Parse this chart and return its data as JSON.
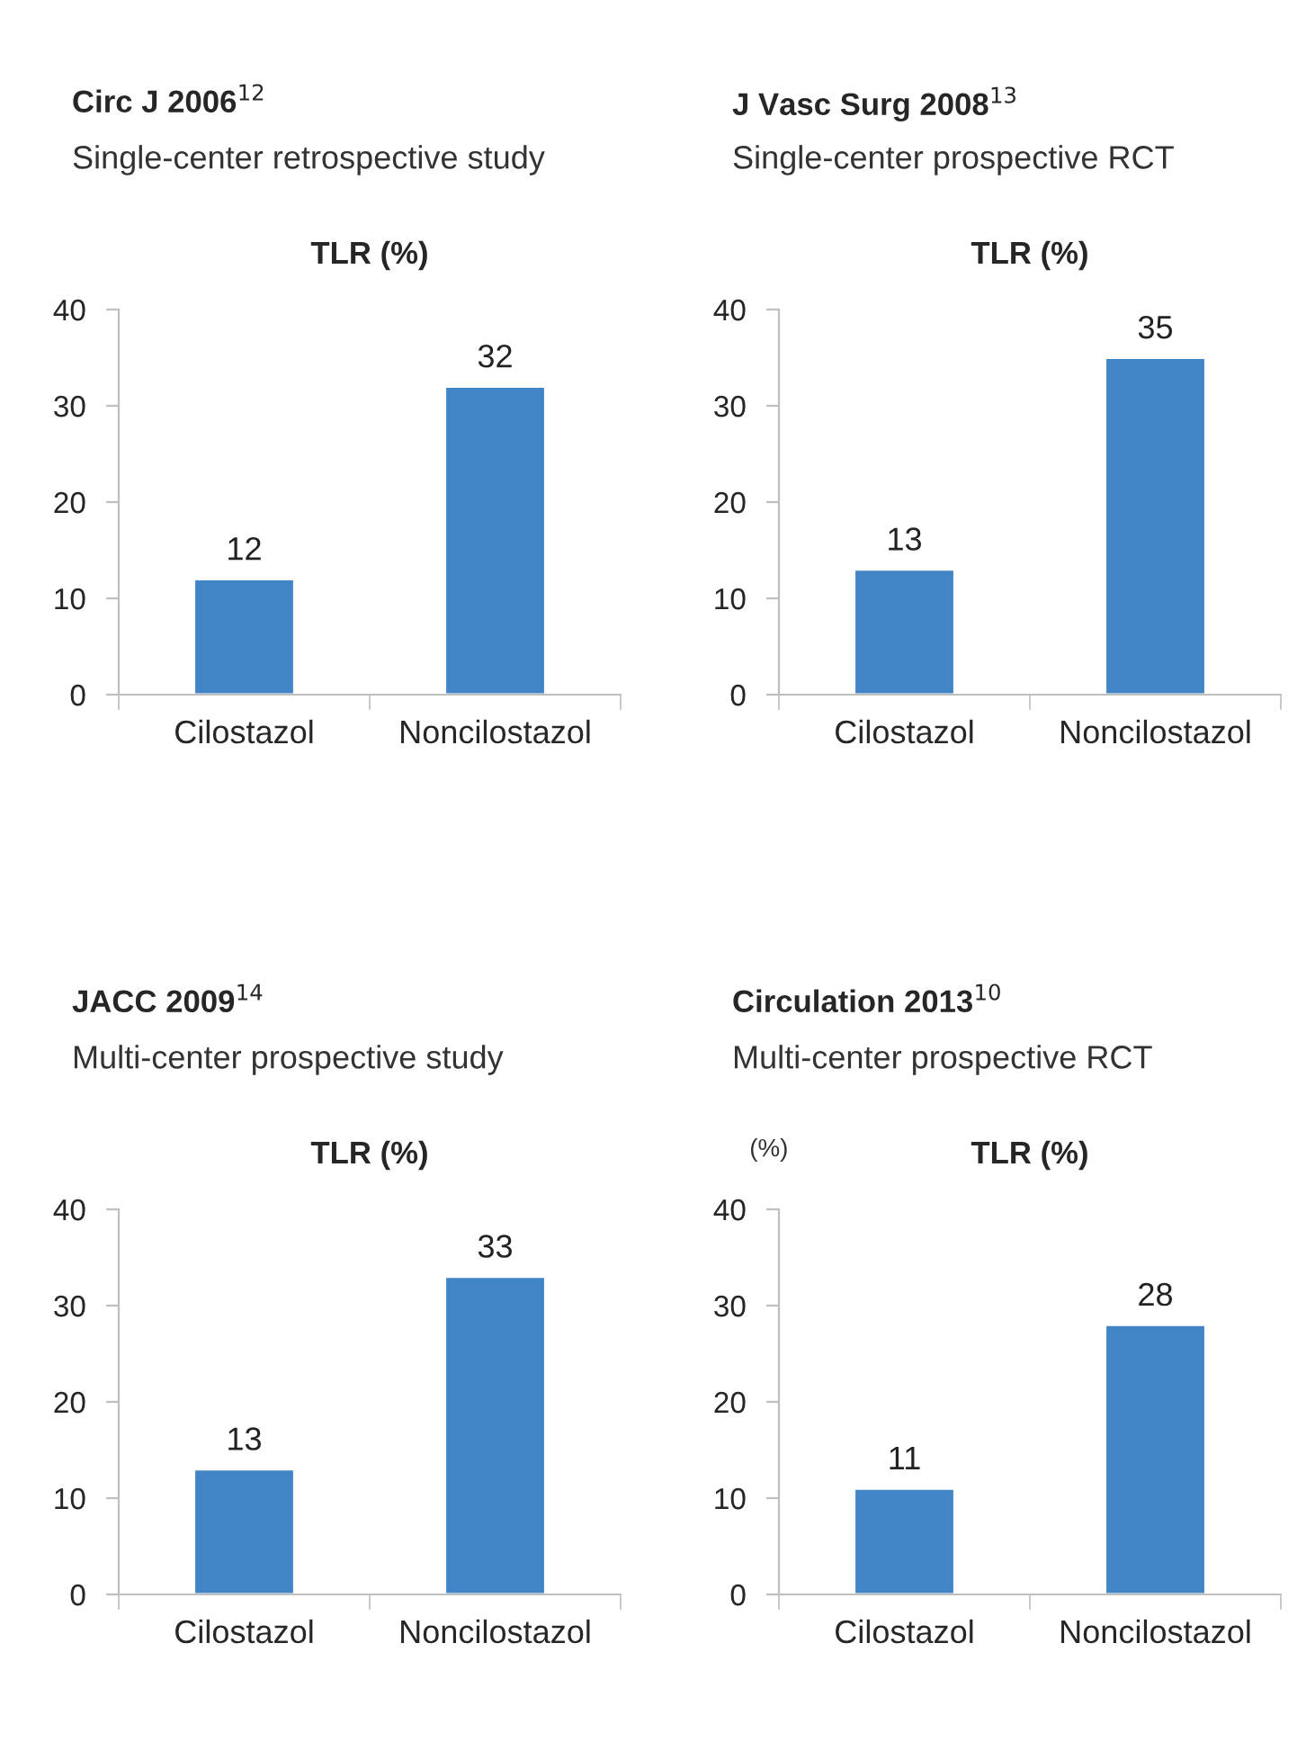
{
  "chart_data": [
    {
      "type": "bar",
      "title": "Circ J 2006$^{12}$",
      "subtitle": "Single-center retrospective study",
      "annotations": [
        "TLR (%)"
      ],
      "categories": [
        "Cilostazol",
        "Noncilostazol"
      ],
      "values": [
        12,
        32
      ],
      "color": "#4285c7",
      "ylim": [
        0,
        40
      ],
      "yticks": [
        0,
        10,
        20,
        30,
        40
      ],
      "data_labels": true
    },
    {
      "type": "bar",
      "title": "J Vasc Surg 2008$^{13}$",
      "subtitle": "Single-center prospective RCT",
      "annotations": [
        "TLR (%)"
      ],
      "categories": [
        "Cilostazol",
        "Noncilostazol"
      ],
      "values": [
        13,
        35
      ],
      "color": "#4285c7",
      "ylim": [
        0,
        40
      ],
      "yticks": [
        0,
        10,
        20,
        30,
        40
      ],
      "data_labels": true
    },
    {
      "type": "bar",
      "title": "JACC 2009$^{14}$",
      "subtitle": "Multi-center prospective study",
      "annotations": [
        "TLR (%)"
      ],
      "categories": [
        "Cilostazol",
        "Noncilostazol"
      ],
      "values": [
        13,
        33
      ],
      "color": "#4285c7",
      "ylim": [
        0,
        40
      ],
      "yticks": [
        0,
        10,
        20,
        30,
        40
      ],
      "data_labels": true
    },
    {
      "type": "bar",
      "title": "Circulation 2013$^{10}$",
      "subtitle": "Multi-center prospective RCT",
      "ylabel": "(%)",
      "annotations": [
        "TLR (%)"
      ],
      "categories": [
        "Cilostazol",
        "Noncilostazol"
      ],
      "values": [
        11,
        28
      ],
      "color": "#4285c7",
      "ylim": [
        0,
        40
      ],
      "yticks": [
        0,
        10,
        20,
        30,
        40
      ],
      "data_labels": true
    }
  ]
}
